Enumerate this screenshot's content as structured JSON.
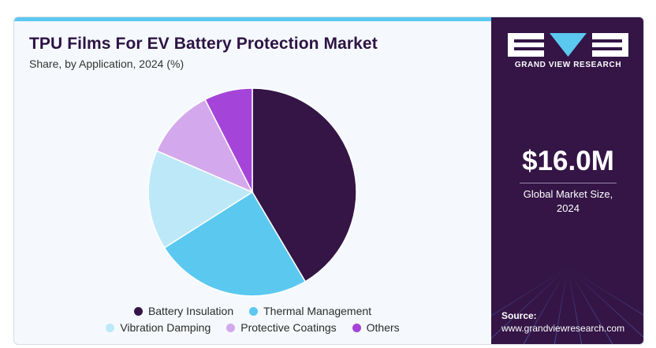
{
  "header": {
    "title": "TPU Films For EV Battery Protection Market",
    "subtitle": "Share, by Application, 2024 (%)"
  },
  "brand": {
    "name": "GRAND VIEW RESEARCH",
    "colors": {
      "primary": "#341546",
      "accent": "#5bc8f0"
    }
  },
  "stat": {
    "value": "$16.0M",
    "caption_line1": "Global Market Size,",
    "caption_line2": "2024"
  },
  "source": {
    "label": "Source:",
    "url": "www.grandviewresearch.com"
  },
  "chart_data": {
    "type": "pie",
    "title": "TPU Films For EV Battery Protection Market",
    "subtitle": "Share, by Application, 2024 (%)",
    "legend_position": "bottom",
    "categories": [
      "Battery Insulation",
      "Thermal Management",
      "Vibration Damping",
      "Protective Coatings",
      "Others"
    ],
    "values": [
      41.5,
      24.5,
      15.5,
      11.0,
      7.5
    ],
    "colors": [
      "#341546",
      "#5bc8f0",
      "#bde8f8",
      "#d4a8ec",
      "#a544d8"
    ],
    "start_angle_deg": 0,
    "direction": "clockwise"
  }
}
